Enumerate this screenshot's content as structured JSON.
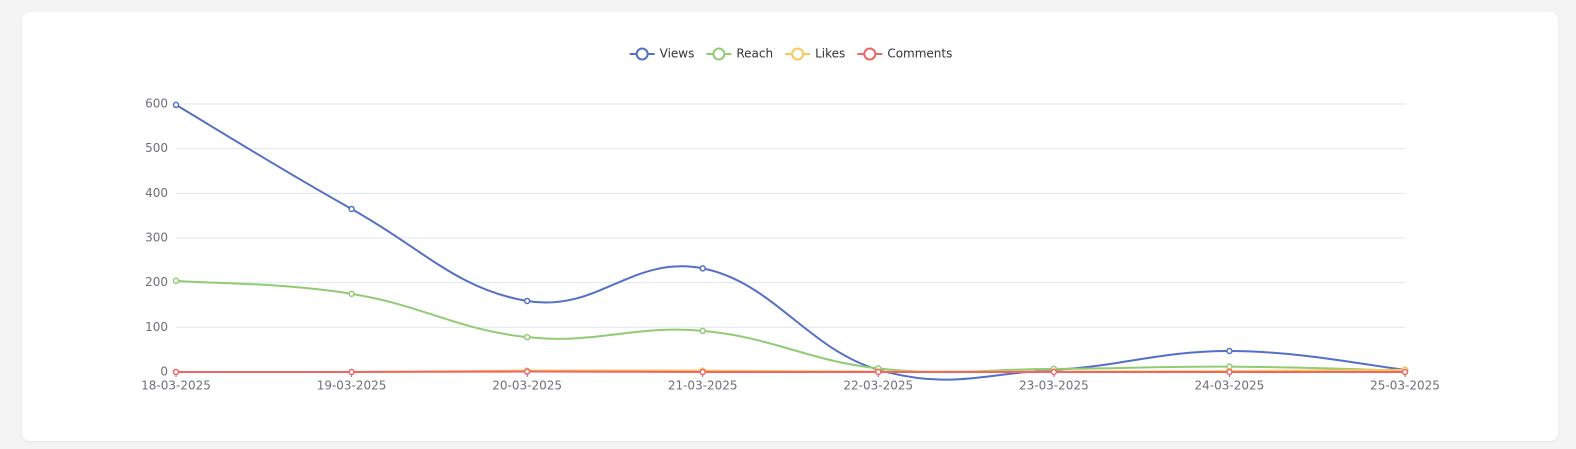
{
  "chart_data": {
    "type": "line",
    "smooth": true,
    "grid": true,
    "categories": [
      "18-03-2025",
      "19-03-2025",
      "20-03-2025",
      "21-03-2025",
      "22-03-2025",
      "23-03-2025",
      "24-03-2025",
      "25-03-2025"
    ],
    "series": [
      {
        "name": "Views",
        "color": "#5470c6",
        "values": [
          598,
          365,
          159,
          232,
          5,
          5,
          47,
          5
        ]
      },
      {
        "name": "Reach",
        "color": "#91cc75",
        "values": [
          204,
          175,
          78,
          92,
          8,
          7,
          12,
          3
        ]
      },
      {
        "name": "Likes",
        "color": "#fac858",
        "values": [
          0,
          0,
          3,
          3,
          1,
          1,
          2,
          5
        ]
      },
      {
        "name": "Comments",
        "color": "#ee6666",
        "values": [
          0,
          0,
          1,
          0,
          0,
          0,
          0,
          0
        ]
      }
    ],
    "ylim": [
      0,
      600
    ],
    "yticks": [
      0,
      100,
      200,
      300,
      400,
      500,
      600
    ]
  }
}
